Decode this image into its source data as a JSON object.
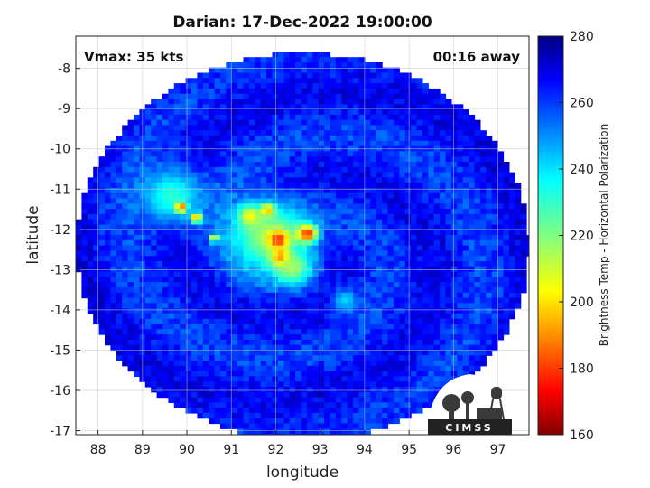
{
  "chart_data": {
    "type": "heatmap",
    "title": "Darian: 17-Dec-2022 19:00:00",
    "annotations": {
      "vmax": "Vmax: 35 kts",
      "away": "00:16 away"
    },
    "xlabel": "longitude",
    "ylabel": "latitude",
    "xlim": [
      87.5,
      97.7
    ],
    "ylim": [
      -17.1,
      -7.2
    ],
    "xticks": [
      88,
      89,
      90,
      91,
      92,
      93,
      94,
      95,
      96,
      97
    ],
    "yticks": [
      -8,
      -9,
      -10,
      -11,
      -12,
      -13,
      -14,
      -15,
      -16,
      -17
    ],
    "grid": true,
    "swath": {
      "center_lon": 92.55,
      "center_lat": -12.35,
      "radius_lon": 5.1,
      "radius_lat": 4.8
    },
    "background_temp": 262,
    "features": [
      {
        "lon": 89.6,
        "lat": -11.1,
        "temp": 230,
        "spread": 0.7
      },
      {
        "lon": 89.8,
        "lat": -11.4,
        "temp": 182,
        "spread": 0.12
      },
      {
        "lon": 90.15,
        "lat": -11.65,
        "temp": 188,
        "spread": 0.12
      },
      {
        "lon": 90.55,
        "lat": -12.15,
        "temp": 195,
        "spread": 0.1
      },
      {
        "lon": 91.8,
        "lat": -12.1,
        "temp": 215,
        "spread": 0.9
      },
      {
        "lon": 91.35,
        "lat": -11.6,
        "temp": 205,
        "spread": 0.25
      },
      {
        "lon": 92.0,
        "lat": -12.2,
        "temp": 178,
        "spread": 0.22
      },
      {
        "lon": 92.05,
        "lat": -12.65,
        "temp": 175,
        "spread": 0.2
      },
      {
        "lon": 91.75,
        "lat": -11.45,
        "temp": 195,
        "spread": 0.15
      },
      {
        "lon": 92.65,
        "lat": -12.05,
        "temp": 178,
        "spread": 0.22
      },
      {
        "lon": 92.3,
        "lat": -12.9,
        "temp": 215,
        "spread": 0.4
      },
      {
        "lon": 93.5,
        "lat": -13.7,
        "temp": 240,
        "spread": 0.3
      }
    ],
    "colorbar": {
      "label": "Brightness Temp - Horizontal Polarization",
      "range": [
        160,
        280
      ],
      "ticks": [
        160,
        180,
        200,
        220,
        240,
        260,
        280
      ],
      "colormap": "jet"
    }
  },
  "logo": {
    "text": "CIMSS"
  }
}
